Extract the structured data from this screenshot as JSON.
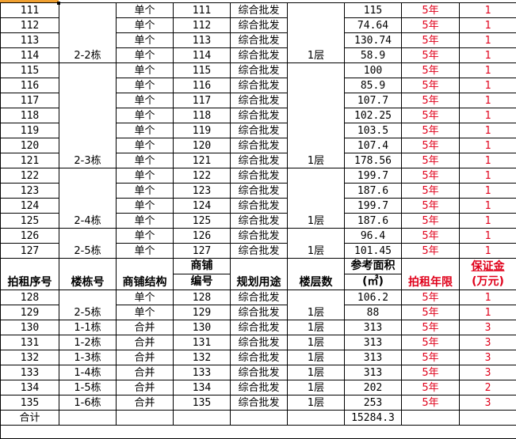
{
  "header": {
    "no": "拍租序号",
    "building": "楼栋号",
    "structure": "商铺结构",
    "shop_no_top": "商铺",
    "shop_no_bottom": "编号",
    "use": "规划用途",
    "floor": "楼层数",
    "area_top": "参考面积",
    "area_bottom": "(㎡)",
    "term": "拍租年限",
    "deposit_top": "保证金",
    "deposit_bottom": "(万元)"
  },
  "colors": {
    "red": "#e0001a",
    "selection": "#f0a030"
  },
  "section1": {
    "rows": [
      {
        "no": "111",
        "structure": "单个",
        "shop_no": "111",
        "use": "综合批发",
        "area": "115",
        "term": "5年",
        "deposit": "1"
      },
      {
        "no": "112",
        "structure": "单个",
        "shop_no": "112",
        "use": "综合批发",
        "area": "74.64",
        "term": "5年",
        "deposit": "1"
      },
      {
        "no": "113",
        "structure": "单个",
        "shop_no": "113",
        "use": "综合批发",
        "area": "130.74",
        "term": "5年",
        "deposit": "1"
      },
      {
        "no": "114",
        "structure": "单个",
        "shop_no": "114",
        "use": "综合批发",
        "area": "58.9",
        "term": "5年",
        "deposit": "1"
      },
      {
        "no": "115",
        "structure": "单个",
        "shop_no": "115",
        "use": "综合批发",
        "area": "100",
        "term": "5年",
        "deposit": "1"
      },
      {
        "no": "116",
        "structure": "单个",
        "shop_no": "116",
        "use": "综合批发",
        "area": "85.9",
        "term": "5年",
        "deposit": "1"
      },
      {
        "no": "117",
        "structure": "单个",
        "shop_no": "117",
        "use": "综合批发",
        "area": "107.7",
        "term": "5年",
        "deposit": "1"
      },
      {
        "no": "118",
        "structure": "单个",
        "shop_no": "118",
        "use": "综合批发",
        "area": "102.25",
        "term": "5年",
        "deposit": "1"
      },
      {
        "no": "119",
        "structure": "单个",
        "shop_no": "119",
        "use": "综合批发",
        "area": "103.5",
        "term": "5年",
        "deposit": "1"
      },
      {
        "no": "120",
        "structure": "单个",
        "shop_no": "120",
        "use": "综合批发",
        "area": "107.4",
        "term": "5年",
        "deposit": "1"
      },
      {
        "no": "121",
        "structure": "单个",
        "shop_no": "121",
        "use": "综合批发",
        "area": "178.56",
        "term": "5年",
        "deposit": "1"
      },
      {
        "no": "122",
        "structure": "单个",
        "shop_no": "122",
        "use": "综合批发",
        "area": "199.7",
        "term": "5年",
        "deposit": "1"
      },
      {
        "no": "123",
        "structure": "单个",
        "shop_no": "123",
        "use": "综合批发",
        "area": "187.6",
        "term": "5年",
        "deposit": "1"
      },
      {
        "no": "124",
        "structure": "单个",
        "shop_no": "124",
        "use": "综合批发",
        "area": "199.7",
        "term": "5年",
        "deposit": "1"
      },
      {
        "no": "125",
        "structure": "单个",
        "shop_no": "125",
        "use": "综合批发",
        "area": "187.6",
        "term": "5年",
        "deposit": "1"
      },
      {
        "no": "126",
        "structure": "单个",
        "shop_no": "126",
        "use": "综合批发",
        "area": "96.4",
        "term": "5年",
        "deposit": "1"
      },
      {
        "no": "127",
        "structure": "单个",
        "shop_no": "127",
        "use": "综合批发",
        "area": "101.45",
        "term": "5年",
        "deposit": "1"
      }
    ],
    "building_groups": [
      {
        "label": "2-2栋",
        "span": 4
      },
      {
        "label": "2-3栋",
        "span": 7
      },
      {
        "label": "2-4栋",
        "span": 4
      },
      {
        "label": "2-5栋",
        "span": 2
      }
    ],
    "floor_groups": [
      {
        "label": "1层",
        "span": 4
      },
      {
        "label": "1层",
        "span": 7
      },
      {
        "label": "1层",
        "span": 4
      },
      {
        "label": "1层",
        "span": 2
      }
    ]
  },
  "section2": {
    "rows": [
      {
        "no": "128",
        "structure": "单个",
        "shop_no": "128",
        "use": "综合批发",
        "area": "106.2",
        "term": "5年",
        "deposit": "1"
      },
      {
        "no": "129",
        "structure": "单个",
        "shop_no": "129",
        "use": "综合批发",
        "area": "88",
        "term": "5年",
        "deposit": "1"
      },
      {
        "no": "130",
        "structure": "合并",
        "shop_no": "130",
        "use": "综合批发",
        "area": "313",
        "term": "5年",
        "deposit": "3"
      },
      {
        "no": "131",
        "structure": "合并",
        "shop_no": "131",
        "use": "综合批发",
        "area": "313",
        "term": "5年",
        "deposit": "3"
      },
      {
        "no": "132",
        "structure": "合并",
        "shop_no": "132",
        "use": "综合批发",
        "area": "313",
        "term": "5年",
        "deposit": "3"
      },
      {
        "no": "133",
        "structure": "合并",
        "shop_no": "133",
        "use": "综合批发",
        "area": "313",
        "term": "5年",
        "deposit": "3"
      },
      {
        "no": "134",
        "structure": "合并",
        "shop_no": "134",
        "use": "综合批发",
        "area": "202",
        "term": "5年",
        "deposit": "2"
      },
      {
        "no": "135",
        "structure": "合并",
        "shop_no": "135",
        "use": "综合批发",
        "area": "253",
        "term": "5年",
        "deposit": "3"
      }
    ],
    "building_groups": [
      {
        "label": "2-5栋",
        "span": 2
      },
      {
        "label": "1-1栋",
        "span": 1
      },
      {
        "label": "1-2栋",
        "span": 1
      },
      {
        "label": "1-3栋",
        "span": 1
      },
      {
        "label": "1-4栋",
        "span": 1
      },
      {
        "label": "1-5栋",
        "span": 1
      },
      {
        "label": "1-6栋",
        "span": 1
      }
    ],
    "floor_groups": [
      {
        "label": "1层",
        "span": 2
      },
      {
        "label": "1层",
        "span": 1
      },
      {
        "label": "1层",
        "span": 1
      },
      {
        "label": "1层",
        "span": 1
      },
      {
        "label": "1层",
        "span": 1
      },
      {
        "label": "1层",
        "span": 1
      },
      {
        "label": "1层",
        "span": 1
      }
    ]
  },
  "total": {
    "label": "合计",
    "area": "15284.3"
  }
}
